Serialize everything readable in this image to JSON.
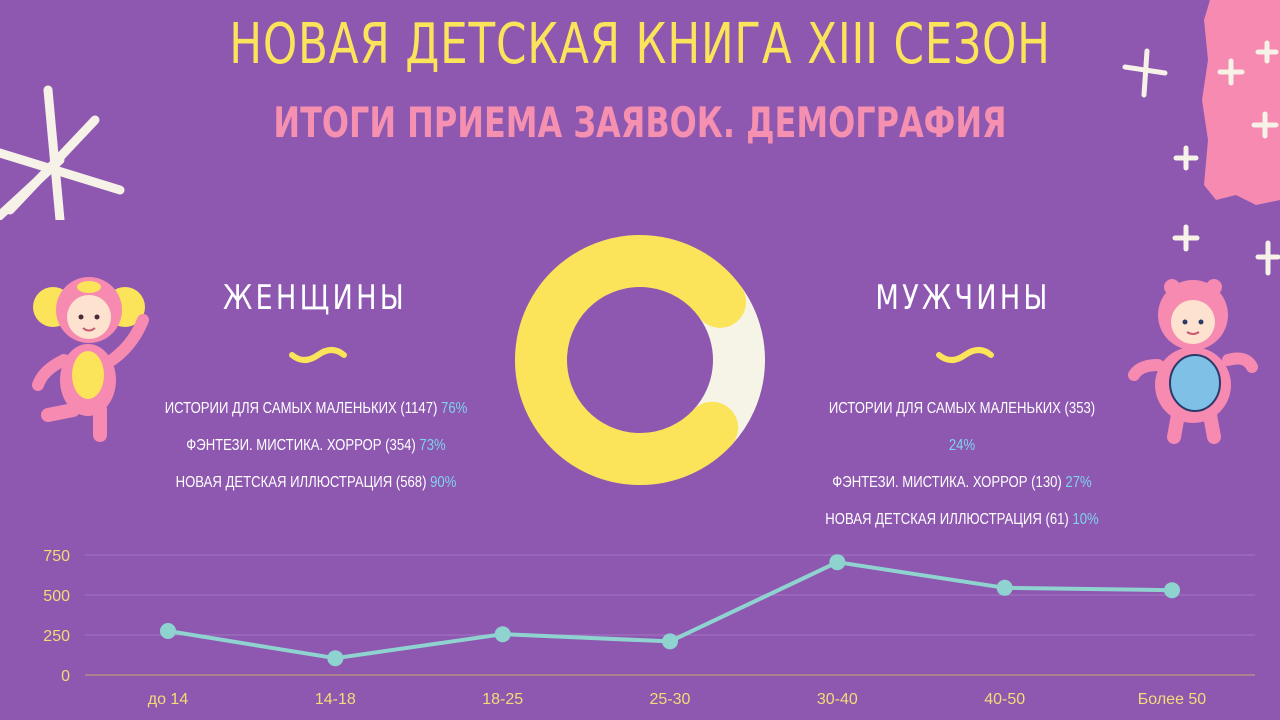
{
  "header": {
    "title": "НОВАЯ ДЕТСКАЯ КНИГА XIII СЕЗОН",
    "subtitle": "ИТОГИ ПРИЕМА ЗАЯВОК. ДЕМОГРАФИЯ"
  },
  "women": {
    "heading": "ЖЕНЩИНЫ",
    "stats": [
      {
        "label": "ИСТОРИИ ДЛЯ САМЫХ МАЛЕНЬКИХ (1147)",
        "pct": "76%"
      },
      {
        "label": "ФЭНТЕЗИ. МИСТИКА. ХОРРОР (354)",
        "pct": "73%"
      },
      {
        "label": "НОВАЯ ДЕТСКАЯ ИЛЛЮСТРАЦИЯ (568)",
        "pct": "90%"
      }
    ]
  },
  "men": {
    "heading": "МУЖЧИНЫ",
    "stats": [
      {
        "label": "ИСТОРИИ ДЛЯ САМЫХ МАЛЕНЬКИХ (353)",
        "pct": "24%"
      },
      {
        "label": "ФЭНТЕЗИ. МИСТИКА. ХОРРОР (130)",
        "pct": "27%"
      },
      {
        "label": "НОВАЯ ДЕТСКАЯ ИЛЛЮСТРАЦИЯ (61)",
        "pct": "10%"
      }
    ]
  },
  "colors": {
    "background": "#8e58b0",
    "title": "#fbe35a",
    "subtitle": "#f590b0",
    "percent": "#7fd3ee",
    "line": "#8fd3d0",
    "donut_women": "#fbe35a",
    "donut_men": "#f6f4e6"
  },
  "chart_data": [
    {
      "type": "pie",
      "style": "donut",
      "slices": [
        {
          "value": 78,
          "color": "#fbe35a"
        },
        {
          "value": 22,
          "color": "#f6f4e6"
        }
      ]
    },
    {
      "type": "line",
      "categories": [
        "до 14",
        "14-18",
        "18-25",
        "25-30",
        "30-40",
        "40-50",
        "Более 50"
      ],
      "values": [
        275,
        105,
        255,
        210,
        705,
        545,
        530
      ],
      "ylim": [
        0,
        750
      ],
      "yticks": [
        0,
        250,
        500,
        750
      ],
      "grid": true,
      "legend": "none"
    }
  ]
}
